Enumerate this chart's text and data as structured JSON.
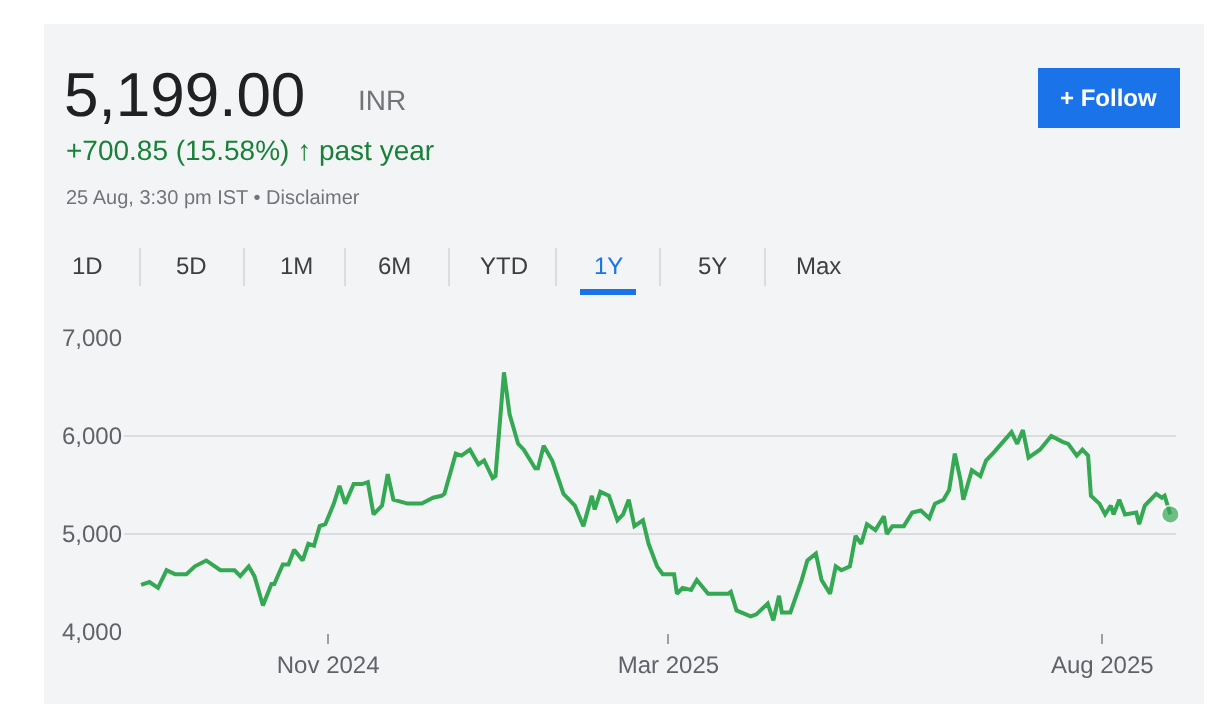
{
  "chart_data": {
    "type": "line",
    "title": "5,199.00",
    "annotations": [
      "INR",
      "+700.85 (15.58%) ↑ past year",
      "25 Aug, 3:30 pm IST • Disclaimer",
      "1D",
      "5D",
      "1M",
      "6M",
      "YTD",
      "1Y",
      "5Y",
      "Max",
      "+ Follow"
    ],
    "x": [
      "2024-08-27",
      "2024-08-30",
      "2024-09-02",
      "2024-09-05",
      "2024-09-08",
      "2024-09-12",
      "2024-09-15",
      "2024-09-19",
      "2024-09-24",
      "2024-09-29",
      "2024-10-01",
      "2024-10-04",
      "2024-10-06",
      "2024-10-09",
      "2024-10-12",
      "2024-10-13",
      "2024-10-16",
      "2024-10-18",
      "2024-10-20",
      "2024-10-23",
      "2024-10-25",
      "2024-10-27",
      "2024-10-29",
      "2024-10-31",
      "2024-11-03",
      "2024-11-05",
      "2024-11-07",
      "2024-11-10",
      "2024-11-13",
      "2024-11-15",
      "2024-11-17",
      "2024-11-20",
      "2024-11-22",
      "2024-11-24",
      "2024-11-29",
      "2024-12-04",
      "2024-12-08",
      "2024-12-11",
      "2024-12-12",
      "2024-12-16",
      "2024-12-18",
      "2024-12-21",
      "2024-12-24",
      "2024-12-26",
      "2024-12-29",
      "2024-12-30",
      "2025-01-02",
      "2025-01-04",
      "2025-01-07",
      "2025-01-09",
      "2025-01-13",
      "2025-01-14",
      "2025-01-16",
      "2025-01-19",
      "2025-01-23",
      "2025-01-27",
      "2025-01-30",
      "2025-02-02",
      "2025-02-03",
      "2025-02-05",
      "2025-02-08",
      "2025-02-11",
      "2025-02-13",
      "2025-02-15",
      "2025-02-17",
      "2025-02-20",
      "2025-02-22",
      "2025-02-25",
      "2025-02-27",
      "2025-03-03",
      "2025-03-04",
      "2025-03-06",
      "2025-03-09",
      "2025-03-11",
      "2025-03-15",
      "2025-03-22",
      "2025-03-23",
      "2025-03-25",
      "2025-03-30",
      "2025-04-01",
      "2025-04-05",
      "2025-04-07",
      "2025-04-09",
      "2025-04-10",
      "2025-04-13",
      "2025-04-17",
      "2025-04-19",
      "2025-04-22",
      "2025-04-24",
      "2025-04-27",
      "2025-04-29",
      "2025-05-01",
      "2025-05-04",
      "2025-05-06",
      "2025-05-08",
      "2025-05-10",
      "2025-05-13",
      "2025-05-16",
      "2025-05-17",
      "2025-05-19",
      "2025-05-23",
      "2025-05-26",
      "2025-05-29",
      "2025-06-01",
      "2025-06-03",
      "2025-06-06",
      "2025-06-08",
      "2025-06-10",
      "2025-06-12",
      "2025-06-13",
      "2025-06-16",
      "2025-06-19",
      "2025-06-21",
      "2025-06-24",
      "2025-06-27",
      "2025-06-30",
      "2025-07-02",
      "2025-07-04",
      "2025-07-06",
      "2025-07-10",
      "2025-07-14",
      "2025-07-18",
      "2025-07-20",
      "2025-07-23",
      "2025-07-25",
      "2025-07-27",
      "2025-07-28",
      "2025-07-31",
      "2025-08-02",
      "2025-08-04",
      "2025-08-05",
      "2025-08-07",
      "2025-08-09",
      "2025-08-13",
      "2025-08-14",
      "2025-08-16",
      "2025-08-20",
      "2025-08-22",
      "2025-08-23",
      "2025-08-25"
    ],
    "series": [
      {
        "color": "#34a853",
        "values": [
          4480,
          4510,
          4450,
          4630,
          4590,
          4590,
          4670,
          4730,
          4630,
          4630,
          4570,
          4670,
          4570,
          4270,
          4490,
          4490,
          4690,
          4690,
          4840,
          4730,
          4900,
          4880,
          5080,
          5100,
          5310,
          5490,
          5310,
          5510,
          5510,
          5530,
          5200,
          5290,
          5610,
          5350,
          5310,
          5310,
          5370,
          5390,
          5410,
          5820,
          5800,
          5860,
          5710,
          5750,
          5570,
          5590,
          6650,
          6220,
          5920,
          5860,
          5670,
          5670,
          5900,
          5750,
          5410,
          5290,
          5080,
          5390,
          5250,
          5430,
          5390,
          5140,
          5200,
          5350,
          5080,
          5140,
          4900,
          4670,
          4590,
          4590,
          4390,
          4450,
          4430,
          4530,
          4390,
          4390,
          4410,
          4220,
          4160,
          4180,
          4290,
          4120,
          4370,
          4200,
          4200,
          4530,
          4730,
          4800,
          4530,
          4390,
          4670,
          4630,
          4670,
          4980,
          4900,
          5100,
          5040,
          5180,
          5000,
          5080,
          5080,
          5220,
          5240,
          5160,
          5310,
          5350,
          5450,
          5820,
          5550,
          5350,
          5650,
          5590,
          5750,
          5840,
          5940,
          6040,
          5920,
          6060,
          5780,
          5860,
          6000,
          5940,
          5920,
          5800,
          5860,
          5800,
          5390,
          5310,
          5200,
          5290,
          5200,
          5350,
          5200,
          5220,
          5100,
          5290,
          5410,
          5370,
          5390,
          5200
        ]
      }
    ],
    "xlim": [
      "2024-08-21",
      "2025-08-27"
    ],
    "xticks": [
      {
        "value": "2024-11-01",
        "label": "Nov 2024"
      },
      {
        "value": "2025-03-01",
        "label": "Mar 2025"
      },
      {
        "value": "2025-08-01",
        "label": "Aug 2025"
      }
    ],
    "ylim": [
      4000,
      7000
    ],
    "yticks": [
      {
        "value": 4000,
        "label": "4,000"
      },
      {
        "value": 5000,
        "label": "5,000"
      },
      {
        "value": 6000,
        "label": "6,000"
      },
      {
        "value": 7000,
        "label": "7,000"
      }
    ],
    "grid": "y",
    "marker": "none",
    "line_style": "solid"
  }
}
